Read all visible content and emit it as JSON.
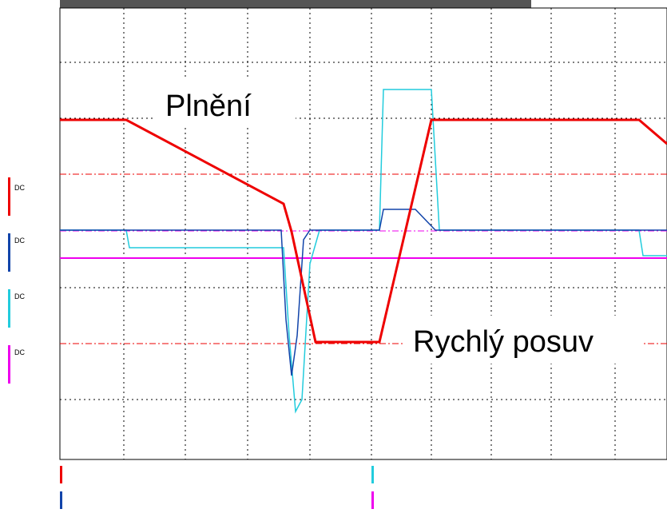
{
  "annotations": {
    "filling": "Plnění",
    "rapid": "Rychlý posuv"
  },
  "channels": [
    {
      "coupling": "DC"
    },
    {
      "coupling": "DC"
    },
    {
      "coupling": "DC"
    },
    {
      "coupling": "DC"
    }
  ]
}
